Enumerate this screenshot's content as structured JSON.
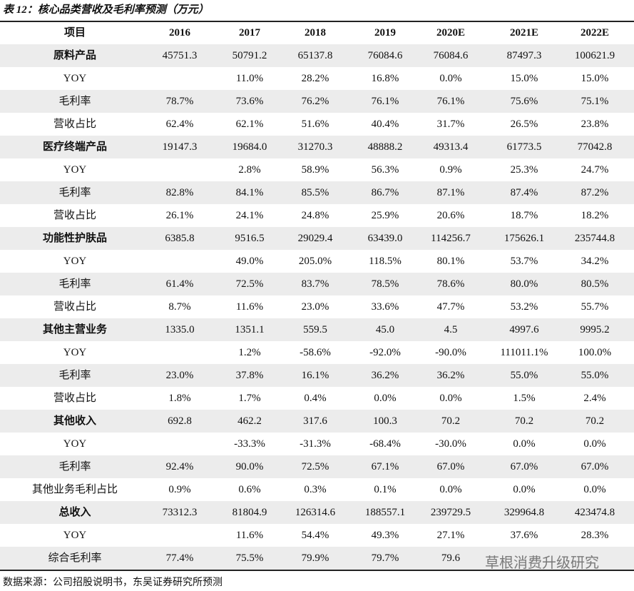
{
  "header": {
    "title": "表 12：核心品类营收及毛利率预测（万元）"
  },
  "table": {
    "columns": [
      "项目",
      "2016",
      "2017",
      "2018",
      "2019",
      "2020E",
      "2021E",
      "2022E"
    ],
    "groups": [
      {
        "name": "原料产品",
        "values": [
          "45751.3",
          "50791.2",
          "65137.8",
          "76084.6",
          "76084.6",
          "87497.3",
          "100621.9"
        ],
        "rows": [
          {
            "label": "YOY",
            "values": [
              null,
              "11.0%",
              "28.2%",
              "16.8%",
              "0.0%",
              "15.0%",
              "15.0%"
            ]
          },
          {
            "label": "毛利率",
            "values": [
              "78.7%",
              "73.6%",
              "76.2%",
              "76.1%",
              "76.1%",
              "75.6%",
              "75.1%"
            ]
          },
          {
            "label": "营收占比",
            "values": [
              "62.4%",
              "62.1%",
              "51.6%",
              "40.4%",
              "31.7%",
              "26.5%",
              "23.8%"
            ]
          }
        ]
      },
      {
        "name": "医疗终端产品",
        "values": [
          "19147.3",
          "19684.0",
          "31270.3",
          "48888.2",
          "49313.4",
          "61773.5",
          "77042.8"
        ],
        "rows": [
          {
            "label": "YOY",
            "values": [
              null,
              "2.8%",
              "58.9%",
              "56.3%",
              "0.9%",
              "25.3%",
              "24.7%"
            ]
          },
          {
            "label": "毛利率",
            "values": [
              "82.8%",
              "84.1%",
              "85.5%",
              "86.7%",
              "87.1%",
              "87.4%",
              "87.2%"
            ]
          },
          {
            "label": "营收占比",
            "values": [
              "26.1%",
              "24.1%",
              "24.8%",
              "25.9%",
              "20.6%",
              "18.7%",
              "18.2%"
            ]
          }
        ]
      },
      {
        "name": "功能性护肤品",
        "values": [
          "6385.8",
          "9516.5",
          "29029.4",
          "63439.0",
          "114256.7",
          "175626.1",
          "235744.8"
        ],
        "rows": [
          {
            "label": "YOY",
            "values": [
              null,
              "49.0%",
              "205.0%",
              "118.5%",
              "80.1%",
              "53.7%",
              "34.2%"
            ]
          },
          {
            "label": "毛利率",
            "values": [
              "61.4%",
              "72.5%",
              "83.7%",
              "78.5%",
              "78.6%",
              "80.0%",
              "80.5%"
            ]
          },
          {
            "label": "营收占比",
            "values": [
              "8.7%",
              "11.6%",
              "23.0%",
              "33.6%",
              "47.7%",
              "53.2%",
              "55.7%"
            ]
          }
        ]
      },
      {
        "name": "其他主营业务",
        "values": [
          "1335.0",
          "1351.1",
          "559.5",
          "45.0",
          "4.5",
          "4997.6",
          "9995.2"
        ],
        "rows": [
          {
            "label": "YOY",
            "values": [
              null,
              "1.2%",
              "-58.6%",
              "-92.0%",
              "-90.0%",
              "111011.1%",
              "100.0%"
            ]
          },
          {
            "label": "毛利率",
            "values": [
              "23.0%",
              "37.8%",
              "16.1%",
              "36.2%",
              "36.2%",
              "55.0%",
              "55.0%"
            ]
          },
          {
            "label": "营收占比",
            "values": [
              "1.8%",
              "1.7%",
              "0.4%",
              "0.0%",
              "0.0%",
              "1.5%",
              "2.4%"
            ]
          }
        ]
      },
      {
        "name": "其他收入",
        "values": [
          "692.8",
          "462.2",
          "317.6",
          "100.3",
          "70.2",
          "70.2",
          "70.2"
        ],
        "rows": [
          {
            "label": "YOY",
            "values": [
              null,
              "-33.3%",
              "-31.3%",
              "-68.4%",
              "-30.0%",
              "0.0%",
              "0.0%"
            ]
          },
          {
            "label": "毛利率",
            "values": [
              "92.4%",
              "90.0%",
              "72.5%",
              "67.1%",
              "67.0%",
              "67.0%",
              "67.0%"
            ]
          },
          {
            "label": "其他业务毛利占比",
            "values": [
              "0.9%",
              "0.6%",
              "0.3%",
              "0.1%",
              "0.0%",
              "0.0%",
              "0.0%"
            ]
          }
        ]
      },
      {
        "name": "总收入",
        "values": [
          "73312.3",
          "81804.9",
          "126314.6",
          "188557.1",
          "239729.5",
          "329964.8",
          "423474.8"
        ],
        "rows": [
          {
            "label": "YOY",
            "values": [
              null,
              "11.6%",
              "54.4%",
              "49.3%",
              "27.1%",
              "37.6%",
              "28.3%"
            ]
          },
          {
            "label": "综合毛利率",
            "values": [
              "77.4%",
              "75.5%",
              "79.9%",
              "79.7%",
              "79.6",
              null,
              null
            ]
          }
        ]
      }
    ]
  },
  "footer": {
    "source": "数据来源：公司招股说明书，东吴证券研究所预测",
    "watermark": "草根消费升级研究"
  }
}
